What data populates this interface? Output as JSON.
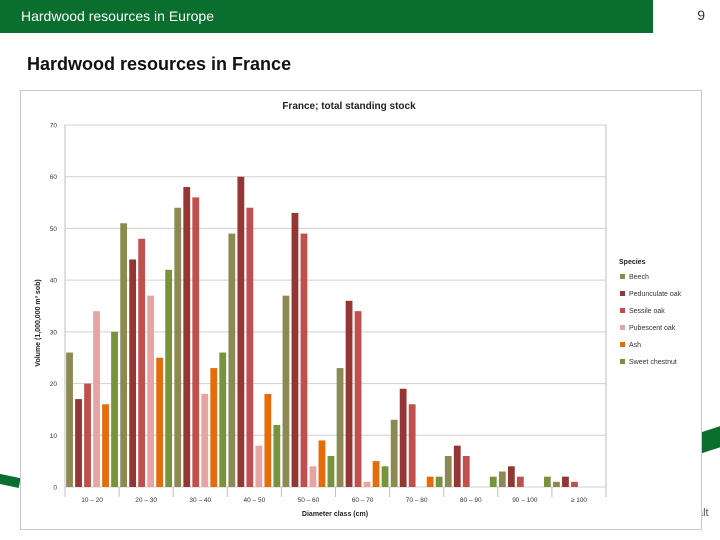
{
  "header": {
    "title": "Hardwood resources in Europe",
    "page_number": "9"
  },
  "slide": {
    "heading": "Hardwood resources in France"
  },
  "footer": {
    "logo_fragment": "alt"
  },
  "colors": {
    "header_green": "#0a6e2e",
    "series": [
      "#8c8a52",
      "#943634",
      "#c0504d",
      "#e6a4a2",
      "#e46c0a",
      "#77933c"
    ]
  },
  "chart_data": {
    "type": "bar",
    "title": "France; total standing stock",
    "xlabel": "Diameter class (cm)",
    "ylabel": "Volume (1,000,000 m³ sob)",
    "ylim": [
      0,
      70
    ],
    "yticks": [
      "0",
      "10",
      "20",
      "30",
      "40",
      "50",
      "60",
      "70"
    ],
    "grid": true,
    "legend_title": "Species",
    "legend_position": "right",
    "categories": [
      "10 – 20",
      "20 – 30",
      "30 – 40",
      "40 – 50",
      "50 – 60",
      "60 – 70",
      "70 – 80",
      "80 – 90",
      "90 – 100",
      "≥ 100"
    ],
    "series": [
      {
        "name": "Beech",
        "color": "#8c8a52",
        "values": [
          26,
          51,
          54,
          49,
          37,
          23,
          13,
          6,
          3,
          1
        ]
      },
      {
        "name": "Pedunculate oak",
        "color": "#943634",
        "values": [
          17,
          44,
          58,
          60,
          53,
          36,
          19,
          8,
          4,
          2
        ]
      },
      {
        "name": "Sessile oak",
        "color": "#c0504d",
        "values": [
          20,
          48,
          56,
          54,
          49,
          34,
          16,
          6,
          2,
          1
        ]
      },
      {
        "name": "Pubescent oak",
        "color": "#e6a4a2",
        "values": [
          34,
          37,
          18,
          8,
          4,
          1,
          0,
          0,
          0,
          0
        ]
      },
      {
        "name": "Ash",
        "color": "#e46c0a",
        "values": [
          16,
          25,
          23,
          18,
          9,
          5,
          2,
          0,
          0,
          0
        ]
      },
      {
        "name": "Sweet chestnut",
        "color": "#77933c",
        "values": [
          30,
          42,
          26,
          12,
          6,
          4,
          2,
          2,
          2,
          0
        ]
      }
    ]
  }
}
